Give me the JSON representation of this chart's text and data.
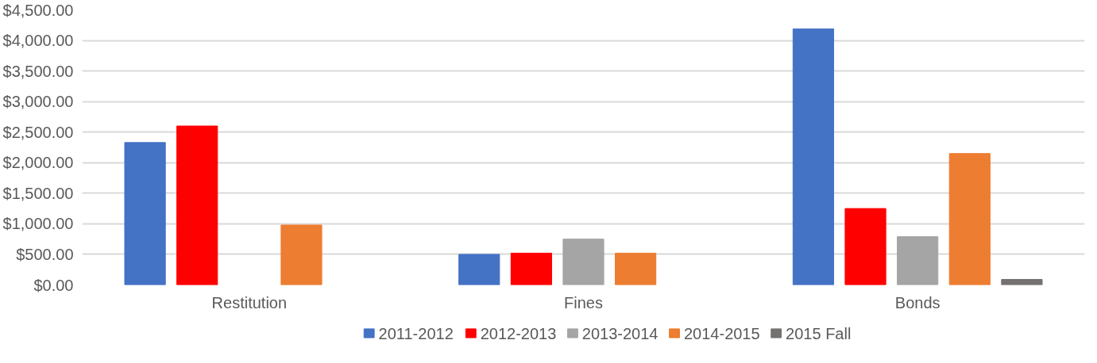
{
  "chart_data": {
    "type": "bar",
    "categories": [
      "Restitution",
      "Fines",
      "Bonds"
    ],
    "series": [
      {
        "name": "2011-2012",
        "color": "#4472c4",
        "values": [
          2330,
          500,
          4190
        ]
      },
      {
        "name": "2012-2013",
        "color": "#ff0000",
        "values": [
          2600,
          520,
          1250
        ]
      },
      {
        "name": "2013-2014",
        "color": "#a5a5a5",
        "values": [
          null,
          750,
          790
        ]
      },
      {
        "name": "2014-2015",
        "color": "#ed7d31",
        "values": [
          980,
          520,
          2150
        ]
      },
      {
        "name": "2015 Fall",
        "color": "#767171",
        "values": [
          null,
          null,
          90
        ]
      }
    ],
    "ylim": [
      0,
      4500
    ],
    "yticks": [
      {
        "value": 0,
        "label": "$0.00"
      },
      {
        "value": 500,
        "label": "$500.00"
      },
      {
        "value": 1000,
        "label": "$1,000.00"
      },
      {
        "value": 1500,
        "label": "$1,500.00"
      },
      {
        "value": 2000,
        "label": "$2,000.00"
      },
      {
        "value": 2500,
        "label": "$2,500.00"
      },
      {
        "value": 3000,
        "label": "$3,000.00"
      },
      {
        "value": 3500,
        "label": "$3,500.00"
      },
      {
        "value": 4000,
        "label": "$4,000.00"
      },
      {
        "value": 4500,
        "label": "$4,500.00"
      }
    ],
    "grid": "y",
    "legend": "bottom"
  }
}
